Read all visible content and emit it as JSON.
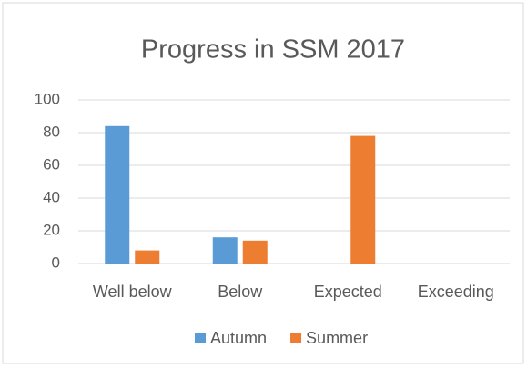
{
  "chart_data": {
    "type": "bar",
    "title": "Progress in SSM 2017",
    "categories": [
      "Well below",
      "Below",
      "Expected",
      "Exceeding"
    ],
    "series": [
      {
        "name": "Autumn",
        "color": "#5b9bd5",
        "values": [
          84,
          16,
          0,
          0
        ]
      },
      {
        "name": "Summer",
        "color": "#ed7d31",
        "values": [
          8,
          14,
          78,
          0
        ]
      }
    ],
    "ylim": [
      0,
      100
    ],
    "yticks": [
      0,
      20,
      40,
      60,
      80,
      100
    ],
    "grid": true,
    "legend": "bottom"
  }
}
